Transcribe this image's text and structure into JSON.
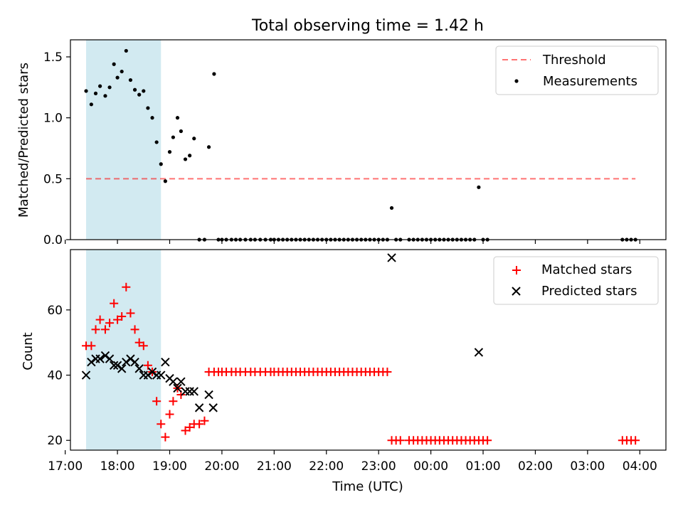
{
  "figure": {
    "title": "Total observing time = 1.42 h"
  },
  "chart_data": [
    {
      "type": "scatter",
      "title": "Total observing time = 1.42 h",
      "xlabel": "",
      "ylabel": "Matched/Predicted stars",
      "xlim": [
        "17:06",
        "04:30"
      ],
      "ylim": [
        0,
        1.64
      ],
      "yticks": [
        "0.0",
        "0.5",
        "1.0",
        "1.5"
      ],
      "grid": false,
      "legend_position": "top-right",
      "shaded_interval": {
        "x0": "17:24",
        "x1": "18:50",
        "color": "#add8e6"
      },
      "threshold": {
        "name": "Threshold",
        "value": 0.5,
        "x0": "17:24",
        "x1": "03:55",
        "color": "#ff0000",
        "style": "dashed"
      },
      "series": [
        {
          "name": "Measurements",
          "marker": "dot",
          "color": "#000000",
          "x": [
            "17:24",
            "17:30",
            "17:35",
            "17:40",
            "17:46",
            "17:51",
            "17:56",
            "18:00",
            "18:05",
            "18:10",
            "18:15",
            "18:20",
            "18:25",
            "18:30",
            "18:35",
            "18:40",
            "18:45",
            "18:50",
            "18:55",
            "19:00",
            "19:04",
            "19:09",
            "19:13",
            "19:18",
            "19:23",
            "19:28",
            "19:34",
            "19:40",
            "19:45",
            "19:51",
            "19:56",
            "20:00",
            "20:05",
            "20:11",
            "20:16",
            "20:21",
            "20:27",
            "20:33",
            "20:38",
            "20:44",
            "20:50",
            "20:56",
            "21:00",
            "21:05",
            "21:10",
            "21:15",
            "21:20",
            "21:25",
            "21:30",
            "21:35",
            "21:40",
            "21:45",
            "21:50",
            "21:55",
            "22:00",
            "22:05",
            "22:10",
            "22:15",
            "22:20",
            "22:25",
            "22:30",
            "22:35",
            "22:40",
            "22:45",
            "22:50",
            "22:55",
            "23:00",
            "23:05",
            "23:10",
            "23:15",
            "23:20",
            "23:25",
            "23:35",
            "23:40",
            "23:45",
            "23:50",
            "23:55",
            "00:00",
            "00:05",
            "00:10",
            "00:15",
            "00:20",
            "00:25",
            "00:30",
            "00:35",
            "00:40",
            "00:45",
            "00:50",
            "00:55",
            "01:00",
            "01:05",
            "03:40",
            "03:45",
            "03:50",
            "03:55"
          ],
          "y": [
            1.22,
            1.11,
            1.2,
            1.26,
            1.18,
            1.25,
            1.44,
            1.33,
            1.38,
            1.55,
            1.31,
            1.23,
            1.19,
            1.22,
            1.08,
            1.0,
            0.8,
            0.62,
            0.48,
            0.72,
            0.84,
            1.0,
            0.89,
            0.66,
            0.69,
            0.83,
            0.0,
            0.0,
            0.76,
            1.36,
            0.0,
            0.0,
            0.0,
            0.0,
            0.0,
            0.0,
            0.0,
            0.0,
            0.0,
            0.0,
            0.0,
            0.0,
            0.0,
            0.0,
            0.0,
            0.0,
            0.0,
            0.0,
            0.0,
            0.0,
            0.0,
            0.0,
            0.0,
            0.0,
            0.0,
            0.0,
            0.0,
            0.0,
            0.0,
            0.0,
            0.0,
            0.0,
            0.0,
            0.0,
            0.0,
            0.0,
            0.0,
            0.0,
            0.0,
            0.26,
            0.0,
            0.0,
            0.0,
            0.0,
            0.0,
            0.0,
            0.0,
            0.0,
            0.0,
            0.0,
            0.0,
            0.0,
            0.0,
            0.0,
            0.0,
            0.0,
            0.0,
            0.0,
            0.43,
            0.0,
            0.0,
            0.0,
            0.0,
            0.0,
            0.0
          ]
        }
      ]
    },
    {
      "type": "scatter",
      "xlabel": "Time (UTC)",
      "ylabel": "Count",
      "xlim": [
        "17:06",
        "04:30"
      ],
      "ylim": [
        17,
        78.5
      ],
      "yticks": [
        "20",
        "40",
        "60"
      ],
      "xticks": [
        "17:00",
        "18:00",
        "19:00",
        "20:00",
        "21:00",
        "22:00",
        "23:00",
        "00:00",
        "01:00",
        "02:00",
        "03:00",
        "04:00"
      ],
      "grid": false,
      "legend_position": "top-right",
      "shaded_interval": {
        "x0": "17:24",
        "x1": "18:50",
        "color": "#add8e6"
      },
      "series": [
        {
          "name": "Matched stars",
          "marker": "plus",
          "color": "#ff0000",
          "x": [
            "17:24",
            "17:30",
            "17:35",
            "17:40",
            "17:46",
            "17:51",
            "17:56",
            "18:00",
            "18:05",
            "18:10",
            "18:15",
            "18:20",
            "18:25",
            "18:30",
            "18:35",
            "18:40",
            "18:45",
            "18:50",
            "18:55",
            "19:00",
            "19:04",
            "19:09",
            "19:13",
            "19:18",
            "19:23",
            "19:28",
            "19:34",
            "19:40",
            "19:45",
            "19:51",
            "19:56",
            "20:00",
            "20:05",
            "20:11",
            "20:16",
            "20:21",
            "20:27",
            "20:33",
            "20:38",
            "20:44",
            "20:50",
            "20:56",
            "21:00",
            "21:05",
            "21:10",
            "21:15",
            "21:20",
            "21:25",
            "21:30",
            "21:35",
            "21:40",
            "21:45",
            "21:50",
            "21:55",
            "22:00",
            "22:05",
            "22:10",
            "22:15",
            "22:20",
            "22:25",
            "22:30",
            "22:35",
            "22:40",
            "22:45",
            "22:50",
            "22:55",
            "23:00",
            "23:05",
            "23:10",
            "23:15",
            "23:20",
            "23:25",
            "23:35",
            "23:40",
            "23:45",
            "23:50",
            "23:55",
            "00:00",
            "00:05",
            "00:10",
            "00:15",
            "00:20",
            "00:25",
            "00:30",
            "00:35",
            "00:40",
            "00:45",
            "00:50",
            "00:55",
            "01:00",
            "01:05",
            "03:40",
            "03:45",
            "03:50",
            "03:55"
          ],
          "y": [
            49,
            49,
            54,
            57,
            54,
            56,
            62,
            57,
            58,
            67,
            59,
            54,
            50,
            49,
            43,
            41,
            32,
            25,
            21,
            28,
            32,
            36,
            34,
            23,
            24,
            25,
            25,
            26,
            41,
            41,
            41,
            41,
            41,
            41,
            41,
            41,
            41,
            41,
            41,
            41,
            41,
            41,
            41,
            41,
            41,
            41,
            41,
            41,
            41,
            41,
            41,
            41,
            41,
            41,
            41,
            41,
            41,
            41,
            41,
            41,
            41,
            41,
            41,
            41,
            41,
            41,
            41,
            41,
            41,
            20,
            20,
            20,
            20,
            20,
            20,
            20,
            20,
            20,
            20,
            20,
            20,
            20,
            20,
            20,
            20,
            20,
            20,
            20,
            20,
            20,
            20,
            20,
            20,
            20,
            20
          ]
        },
        {
          "name": "Predicted stars",
          "marker": "x",
          "color": "#000000",
          "x": [
            "17:24",
            "17:30",
            "17:35",
            "17:40",
            "17:46",
            "17:51",
            "17:56",
            "18:00",
            "18:05",
            "18:10",
            "18:15",
            "18:20",
            "18:25",
            "18:30",
            "18:35",
            "18:40",
            "18:45",
            "18:50",
            "18:55",
            "19:00",
            "19:04",
            "19:09",
            "19:13",
            "19:18",
            "19:23",
            "19:28",
            "19:34",
            "19:45",
            "19:50",
            "23:15",
            "00:55"
          ],
          "y": [
            40,
            44,
            45,
            45,
            46,
            45,
            43,
            43,
            42,
            44,
            45,
            44,
            42,
            40,
            40,
            41,
            40,
            40,
            44,
            39,
            38,
            36,
            38,
            35,
            35,
            35,
            30,
            34,
            30,
            76,
            47
          ]
        }
      ]
    }
  ]
}
